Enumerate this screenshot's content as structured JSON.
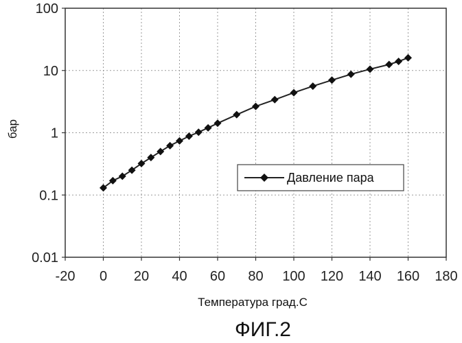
{
  "chart_data": {
    "type": "line",
    "x_scale": "linear",
    "y_scale": "log",
    "xlabel": "Температура град.С",
    "ylabel": "бар",
    "xlim": [
      -20,
      180
    ],
    "ylim": [
      0.01,
      100
    ],
    "x_ticks": [
      -20,
      0,
      20,
      40,
      60,
      80,
      100,
      120,
      140,
      160,
      180
    ],
    "x_tick_labels": [
      "-20",
      "0",
      "20",
      "40",
      "60",
      "80",
      "100",
      "120",
      "140",
      "160",
      "180"
    ],
    "y_ticks": [
      0.01,
      0.1,
      1,
      10,
      100
    ],
    "y_tick_labels": [
      "0.01",
      "0.1",
      "1",
      "10",
      "100"
    ],
    "grid": true,
    "legend_position": "center-right",
    "series": [
      {
        "name": "Давление пара",
        "marker": "diamond",
        "color": "#111111",
        "x": [
          0,
          5,
          10,
          15,
          20,
          25,
          30,
          35,
          40,
          45,
          50,
          55,
          60,
          70,
          80,
          90,
          100,
          110,
          120,
          130,
          140,
          150,
          155,
          160
        ],
        "y": [
          0.13,
          0.17,
          0.2,
          0.25,
          0.32,
          0.4,
          0.5,
          0.62,
          0.74,
          0.88,
          1.02,
          1.2,
          1.42,
          1.95,
          2.65,
          3.4,
          4.4,
          5.6,
          7.0,
          8.7,
          10.5,
          12.5,
          14.0,
          16.0
        ]
      }
    ]
  },
  "figure_caption": "ФИГ.2"
}
